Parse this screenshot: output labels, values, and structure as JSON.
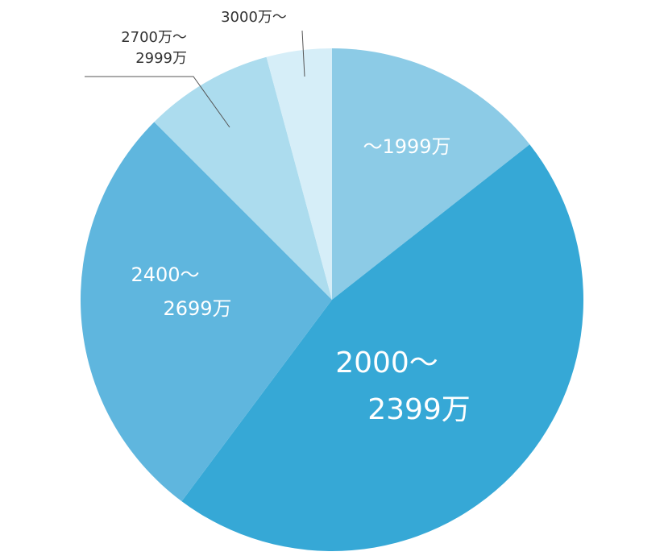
{
  "chart_data": {
    "type": "pie",
    "categories": [
      [
        "〜1999万"
      ],
      [
        "2000〜",
        "2399万"
      ],
      [
        "2400〜",
        "2699万"
      ],
      [
        "2700万〜",
        "2999万"
      ],
      [
        "3000万〜"
      ]
    ],
    "values": [
      14.4,
      45.8,
      27.3,
      8.3,
      4.2
    ],
    "colors": [
      "#8ccbe6",
      "#36a8d6",
      "#5fb6de",
      "#acdcee",
      "#d6eef8"
    ]
  }
}
